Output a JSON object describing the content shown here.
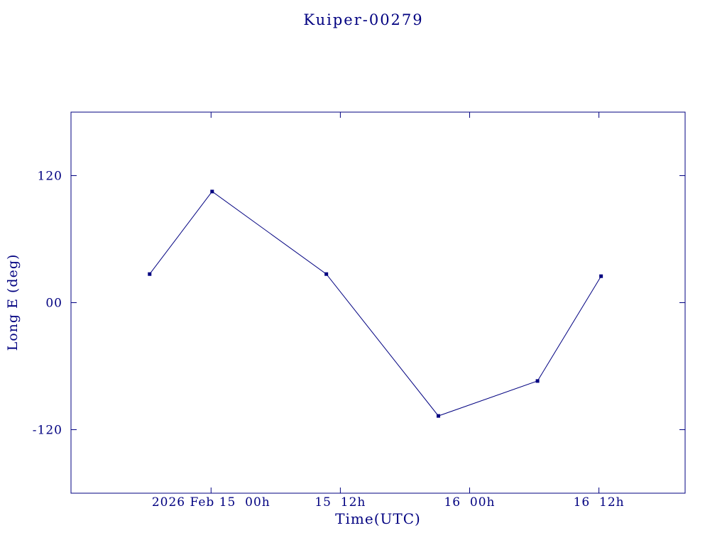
{
  "page": {
    "background": "#ffffff",
    "accent": "#000080"
  },
  "chart_data": {
    "type": "line",
    "title": "Kuiper-00279",
    "xlabel": "Time(UTC)",
    "ylabel": "Long E (deg)",
    "x_unit": "hours since 2026 Feb 15 00h UTC",
    "xlim": [
      -13,
      44
    ],
    "ylim": [
      -180,
      180
    ],
    "grid": false,
    "legend": false,
    "color": "#000080",
    "x_ticks": [
      {
        "value": 0,
        "label": "2026 Feb 15  00h"
      },
      {
        "value": 12,
        "label": "15  12h"
      },
      {
        "value": 24,
        "label": "16  00h"
      },
      {
        "value": 36,
        "label": "16  12h"
      }
    ],
    "y_ticks": [
      {
        "value": 120,
        "label": "120"
      },
      {
        "value": 0,
        "label": "00"
      },
      {
        "value": -120,
        "label": "-120"
      }
    ],
    "series": [
      {
        "name": "Long E",
        "color": "#000080",
        "marker": "square",
        "points": [
          {
            "x": -5.7,
            "y": 27
          },
          {
            "x": 0.1,
            "y": 105
          },
          {
            "x": 10.7,
            "y": 27
          },
          {
            "x": 21.1,
            "y": -107
          },
          {
            "x": 30.3,
            "y": -74
          },
          {
            "x": 36.2,
            "y": 25
          }
        ]
      }
    ]
  }
}
